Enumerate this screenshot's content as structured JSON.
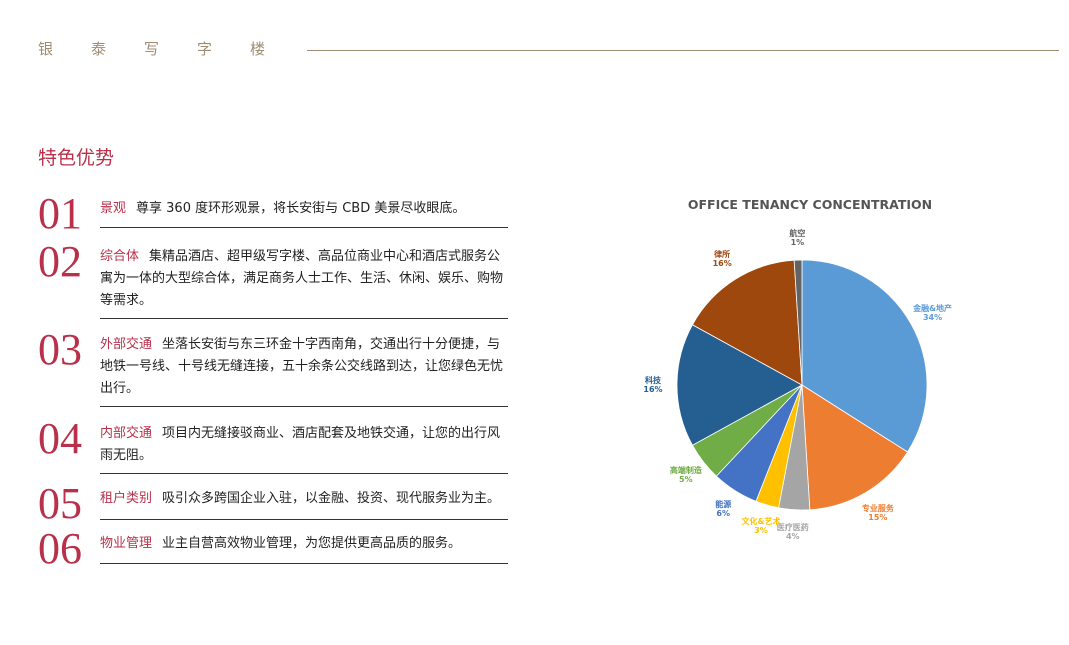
{
  "header": {
    "brand": "银泰写字楼"
  },
  "section": {
    "title": "特色优势"
  },
  "features": [
    {
      "num": "01",
      "label": "景观",
      "text": "尊享 360 度环形观景，将长安街与 CBD 美景尽收眼底。"
    },
    {
      "num": "02",
      "label": "综合体",
      "text": "集精品酒店、超甲级写字楼、高品位商业中心和酒店式服务公寓为一体的大型综合体，满足商务人士工作、生活、休闲、娱乐、购物等需求。"
    },
    {
      "num": "03",
      "label": "外部交通",
      "text": "坐落长安街与东三环金十字西南角，交通出行十分便捷，与地铁一号线、十号线无缝连接，五十余条公交线路到达，让您绿色无忧出行。"
    },
    {
      "num": "04",
      "label": "内部交通",
      "text": "项目内无缝接驳商业、酒店配套及地铁交通，让您的出行风雨无阻。"
    },
    {
      "num": "05",
      "label": "租户类别",
      "text": "吸引众多跨国企业入驻，以金融、投资、现代服务业为主。"
    },
    {
      "num": "06",
      "label": "物业管理",
      "text": "业主自营高效物业管理，为您提供更高品质的服务。"
    }
  ],
  "chart_data": {
    "type": "pie",
    "title": "OFFICE TENANCY CONCENTRATION",
    "start": "top",
    "direction": "clockwise",
    "slices": [
      {
        "label": "金融&地产",
        "value": 34,
        "pct": "34%",
        "color": "#5b9bd5"
      },
      {
        "label": "专业服务",
        "value": 15,
        "pct": "15%",
        "color": "#ed7d31"
      },
      {
        "label": "医疗医药",
        "value": 4,
        "pct": "4%",
        "color": "#a5a5a5"
      },
      {
        "label": "文化&艺术",
        "value": 3,
        "pct": "3%",
        "color": "#ffc000"
      },
      {
        "label": "能源",
        "value": 6,
        "pct": "6%",
        "color": "#4472c4"
      },
      {
        "label": "高端制造",
        "value": 5,
        "pct": "5%",
        "color": "#70ad47"
      },
      {
        "label": "科技",
        "value": 16,
        "pct": "16%",
        "color": "#255e91"
      },
      {
        "label": "律所",
        "value": 16,
        "pct": "16%",
        "color": "#9e480e"
      },
      {
        "label": "航空",
        "value": 1,
        "pct": "1%",
        "color": "#636363"
      }
    ]
  }
}
